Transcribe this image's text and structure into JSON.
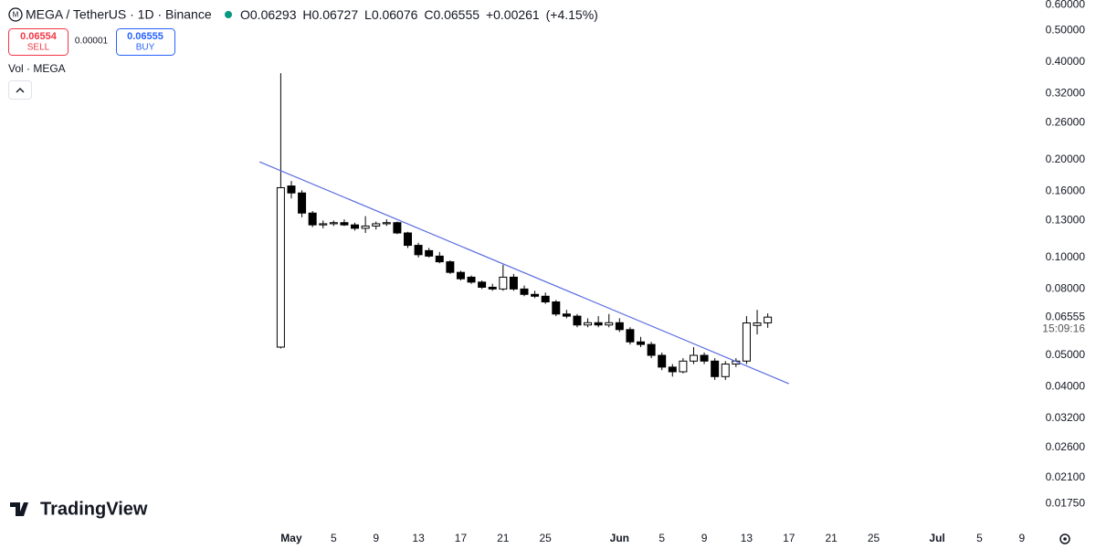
{
  "header": {
    "symbol": "MEGA / TetherUS · 1D · Binance",
    "o_label": "O",
    "h_label": "H",
    "l_label": "L",
    "c_label": "C",
    "change": "+0.00261",
    "change_pct": "(+4.15%)",
    "sell_price": "0.06554",
    "sell": "SELL",
    "spread": "0.00001",
    "buy_price": "0.06555",
    "buy": "BUY",
    "volume": "Vol · MEGA",
    "countdown": "15:09:16",
    "brand": "TradingView"
  },
  "chart_data": {
    "type": "candlestick",
    "log_scale": true,
    "x": [
      "04-30",
      "05-01",
      "05-02",
      "05-03",
      "05-04",
      "05-05",
      "05-06",
      "05-07",
      "05-08",
      "05-09",
      "05-10",
      "05-11",
      "05-12",
      "05-13",
      "05-14",
      "05-15",
      "05-16",
      "05-17",
      "05-18",
      "05-19",
      "05-20",
      "05-21",
      "05-22",
      "05-23",
      "05-24",
      "05-25",
      "05-26",
      "05-27",
      "05-28",
      "05-29",
      "05-30",
      "05-31",
      "06-01",
      "06-02",
      "06-03",
      "06-04",
      "06-05",
      "06-06",
      "06-07",
      "06-08",
      "06-09",
      "06-10",
      "06-11",
      "06-12",
      "06-13",
      "06-14",
      "06-15"
    ],
    "open": [
      0.053,
      0.166,
      0.158,
      0.137,
      0.126,
      0.127,
      0.128,
      0.126,
      0.123,
      0.125,
      0.127,
      0.128,
      0.119,
      0.109,
      0.105,
      0.101,
      0.097,
      0.09,
      0.087,
      0.084,
      0.081,
      0.08,
      0.087,
      0.08,
      0.077,
      0.076,
      0.073,
      0.067,
      0.066,
      0.062,
      0.063,
      0.062,
      0.063,
      0.06,
      0.055,
      0.054,
      0.05,
      0.046,
      0.0445,
      0.048,
      0.05,
      0.048,
      0.043,
      0.047,
      0.048,
      0.0618,
      0.06293
    ],
    "high": [
      0.369,
      0.172,
      0.161,
      0.139,
      0.13,
      0.13,
      0.131,
      0.128,
      0.134,
      0.129,
      0.131,
      0.129,
      0.12,
      0.111,
      0.107,
      0.104,
      0.098,
      0.091,
      0.088,
      0.085,
      0.083,
      0.095,
      0.089,
      0.082,
      0.079,
      0.078,
      0.074,
      0.069,
      0.067,
      0.065,
      0.066,
      0.067,
      0.065,
      0.061,
      0.057,
      0.055,
      0.051,
      0.047,
      0.049,
      0.053,
      0.051,
      0.049,
      0.048,
      0.049,
      0.066,
      0.069,
      0.06727
    ],
    "low": [
      0.0525,
      0.152,
      0.133,
      0.124,
      0.123,
      0.125,
      0.125,
      0.121,
      0.119,
      0.122,
      0.125,
      0.118,
      0.107,
      0.1,
      0.1,
      0.096,
      0.089,
      0.085,
      0.083,
      0.08,
      0.079,
      0.079,
      0.079,
      0.076,
      0.075,
      0.072,
      0.066,
      0.065,
      0.061,
      0.061,
      0.061,
      0.061,
      0.059,
      0.054,
      0.053,
      0.049,
      0.045,
      0.043,
      0.044,
      0.047,
      0.047,
      0.042,
      0.042,
      0.046,
      0.047,
      0.058,
      0.06076
    ],
    "close": [
      0.164,
      0.158,
      0.137,
      0.126,
      0.127,
      0.128,
      0.126,
      0.123,
      0.125,
      0.127,
      0.128,
      0.119,
      0.109,
      0.102,
      0.101,
      0.097,
      0.09,
      0.086,
      0.084,
      0.081,
      0.08,
      0.087,
      0.08,
      0.077,
      0.076,
      0.073,
      0.067,
      0.066,
      0.062,
      0.063,
      0.062,
      0.063,
      0.06,
      0.055,
      0.054,
      0.05,
      0.046,
      0.0445,
      0.048,
      0.05,
      0.048,
      0.043,
      0.047,
      0.048,
      0.0629,
      0.0629,
      0.06555
    ],
    "up_color": "#ffffff",
    "down_color": "#000000",
    "wick_color": "#000000",
    "trendline": {
      "x": [
        "04-28",
        "06-17"
      ],
      "values": [
        0.197,
        0.0409
      ],
      "color": "#5b6ee1"
    },
    "xlim": [
      "04-04",
      "07-11"
    ],
    "xticks": [
      {
        "value": "05-01",
        "label": "May"
      },
      {
        "value": "05-05",
        "label": "5"
      },
      {
        "value": "05-09",
        "label": "9"
      },
      {
        "value": "05-13",
        "label": "13"
      },
      {
        "value": "05-17",
        "label": "17"
      },
      {
        "value": "05-21",
        "label": "21"
      },
      {
        "value": "05-25",
        "label": "25"
      },
      {
        "value": "06-01",
        "label": "Jun"
      },
      {
        "value": "06-05",
        "label": "5"
      },
      {
        "value": "06-09",
        "label": "9"
      },
      {
        "value": "06-13",
        "label": "13"
      },
      {
        "value": "06-17",
        "label": "17"
      },
      {
        "value": "06-21",
        "label": "21"
      },
      {
        "value": "06-25",
        "label": "25"
      },
      {
        "value": "07-01",
        "label": "Jul"
      },
      {
        "value": "07-05",
        "label": "5"
      },
      {
        "value": "07-09",
        "label": "9"
      }
    ],
    "ylim": [
      0.015,
      0.62
    ],
    "yticks": [
      {
        "value": 0.6,
        "label": "0.60000"
      },
      {
        "value": 0.5,
        "label": "0.50000"
      },
      {
        "value": 0.4,
        "label": "0.40000"
      },
      {
        "value": 0.32,
        "label": "0.32000"
      },
      {
        "value": 0.26,
        "label": "0.26000"
      },
      {
        "value": 0.2,
        "label": "0.20000"
      },
      {
        "value": 0.16,
        "label": "0.16000"
      },
      {
        "value": 0.13,
        "label": "0.13000"
      },
      {
        "value": 0.1,
        "label": "0.10000"
      },
      {
        "value": 0.08,
        "label": "0.08000"
      },
      {
        "value": 0.05,
        "label": "0.05000"
      },
      {
        "value": 0.04,
        "label": "0.04000"
      },
      {
        "value": 0.032,
        "label": "0.03200"
      },
      {
        "value": 0.026,
        "label": "0.02600"
      },
      {
        "value": 0.021,
        "label": "0.02100"
      },
      {
        "value": 0.0175,
        "label": "0.01750"
      }
    ]
  }
}
